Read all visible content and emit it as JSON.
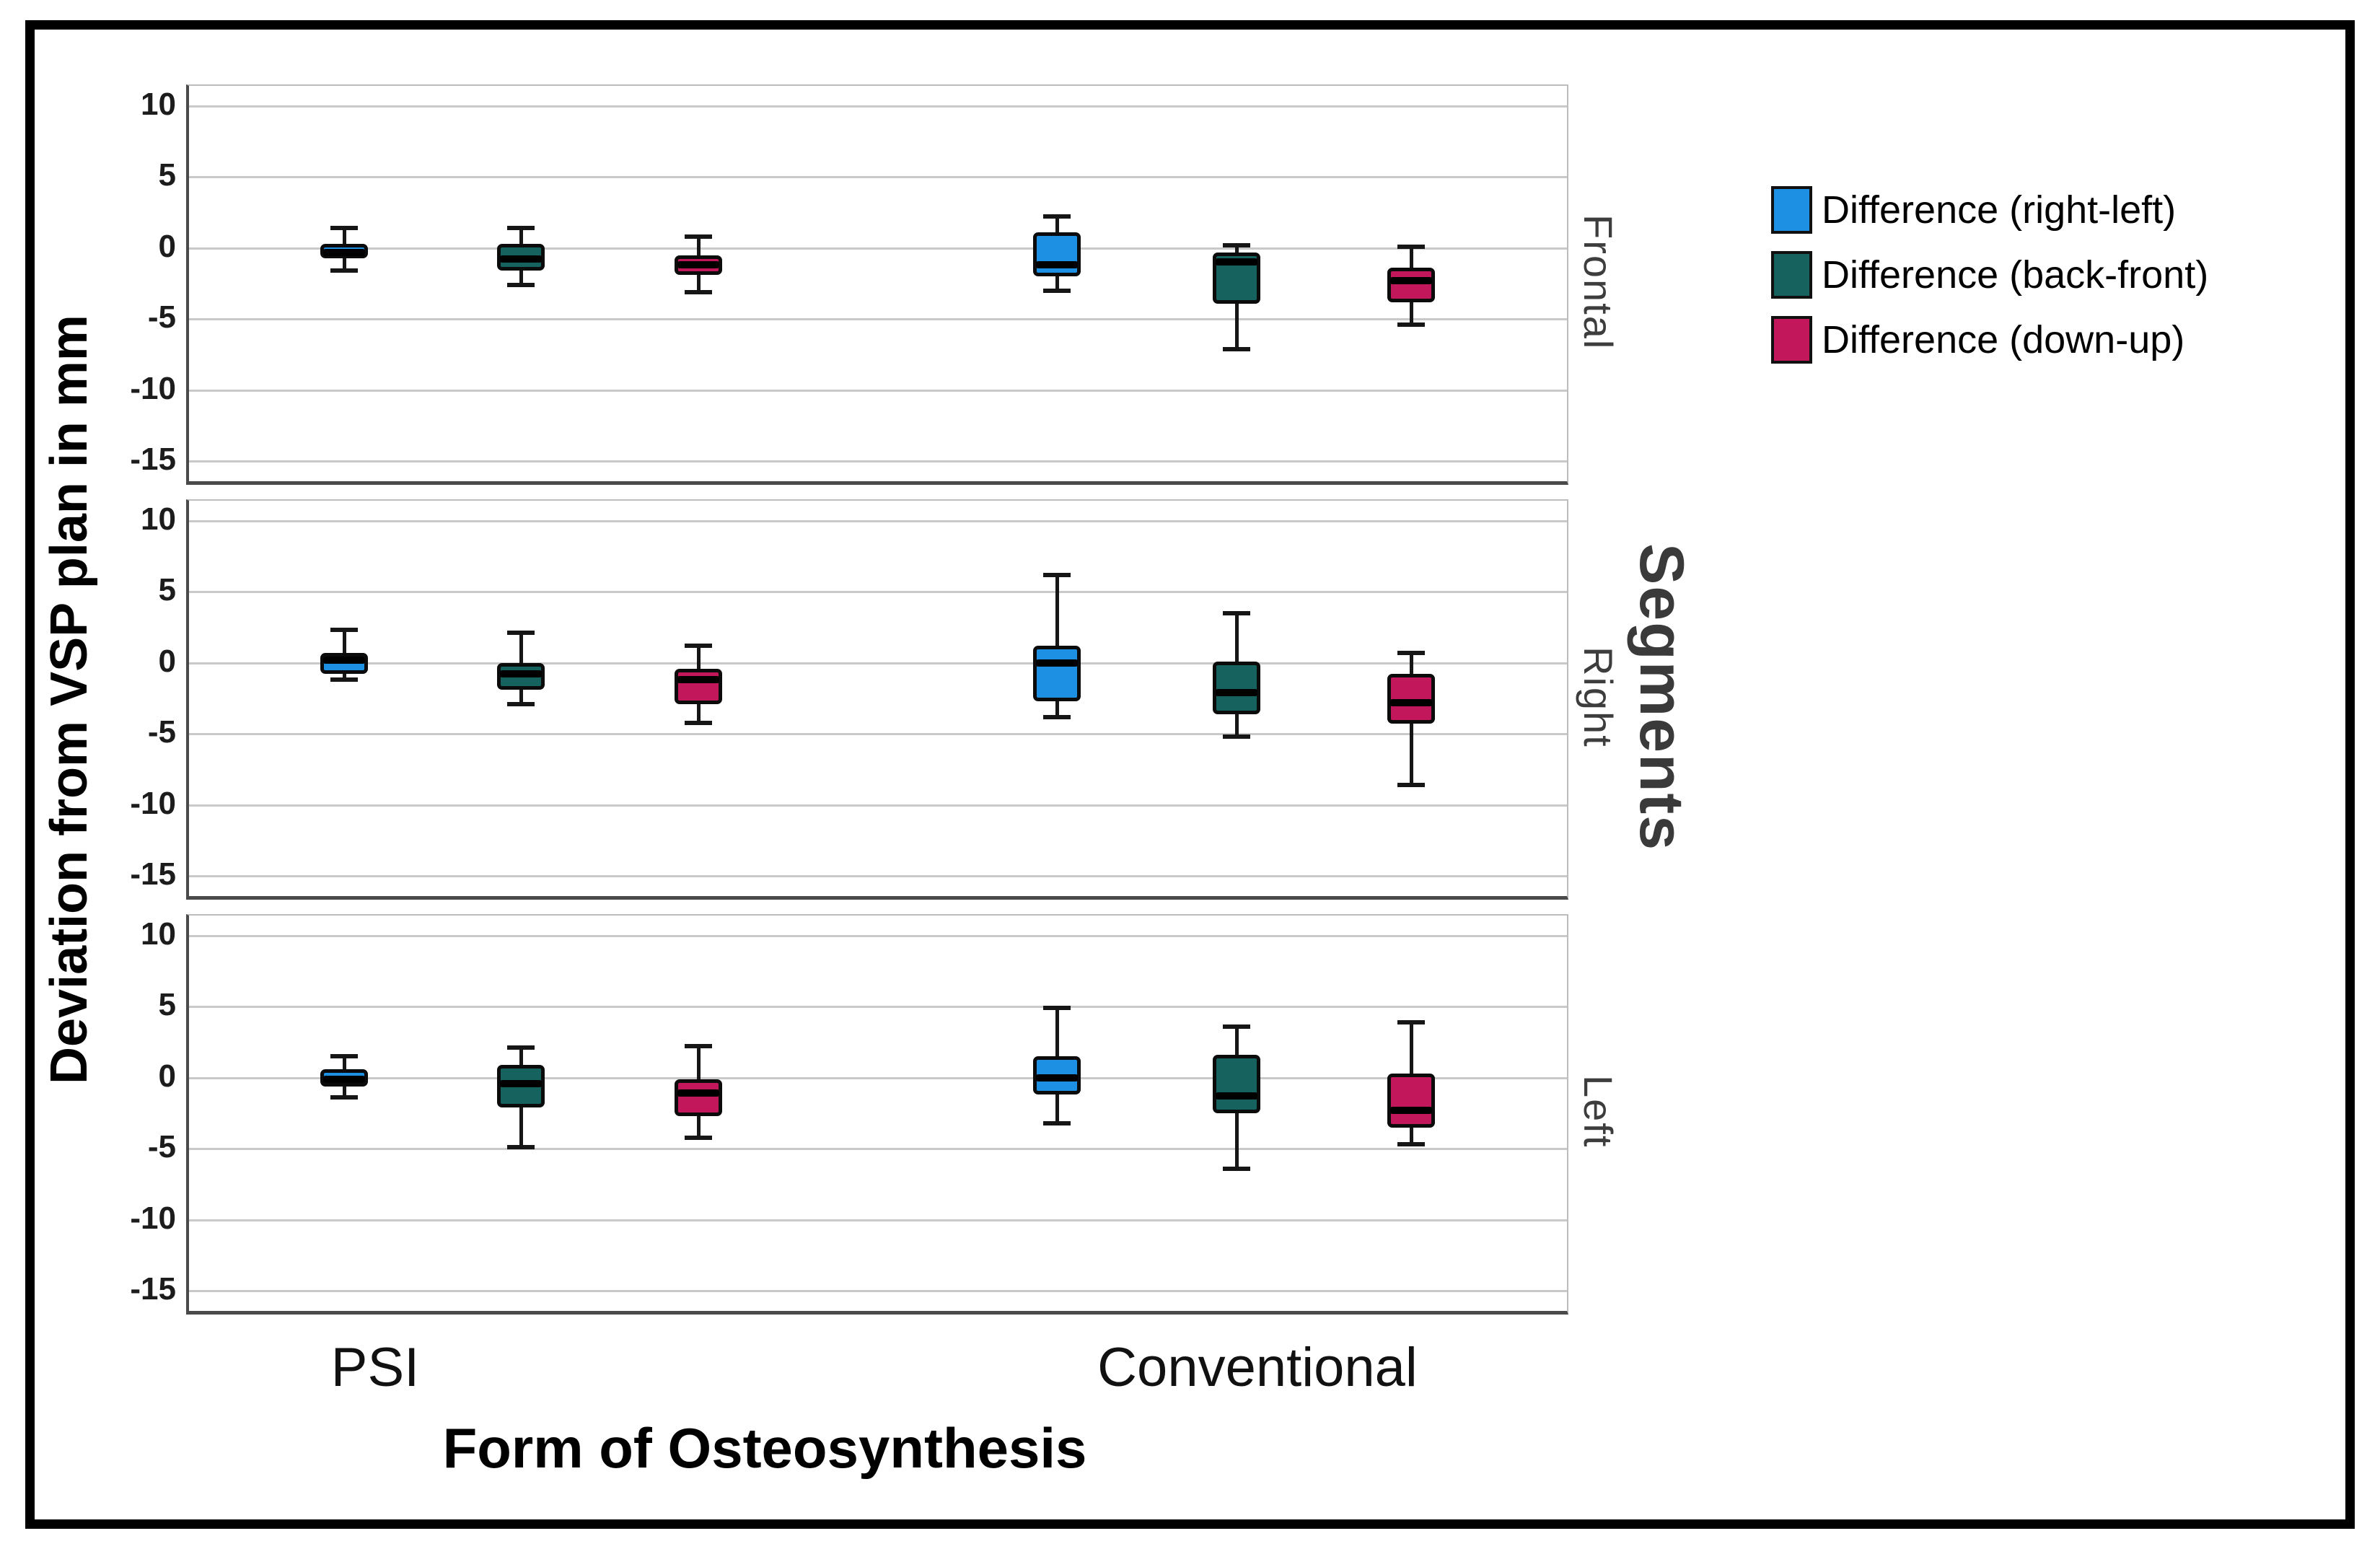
{
  "chart_data": {
    "type": "boxplot",
    "title": "",
    "ylabel": "Deviation from VSP plan in mm",
    "xlabel": "Form of Osteosynthesis",
    "panel_axis_title": "Segments",
    "categories": [
      "PSI",
      "Conventional"
    ],
    "yticks": [
      10,
      5,
      0,
      -5,
      -10,
      -15
    ],
    "ylim": [
      11.4,
      -16.4
    ],
    "grid": true,
    "legend_position": "top-right",
    "series": [
      {
        "name": "Difference (right-left)",
        "color": "#1D90E4"
      },
      {
        "name": "Difference (back-front)",
        "color": "#15625F"
      },
      {
        "name": "Difference (down-up)",
        "color": "#C2185B"
      }
    ],
    "panels": [
      {
        "label": "Frontal",
        "boxes": [
          {
            "category": "PSI",
            "series": "Difference (right-left)",
            "whisker_low": -1.6,
            "q1": -0.7,
            "median": -0.3,
            "q3": 0.3,
            "whisker_high": 1.4
          },
          {
            "category": "PSI",
            "series": "Difference (back-front)",
            "whisker_low": -2.6,
            "q1": -1.6,
            "median": -0.8,
            "q3": 0.3,
            "whisker_high": 1.4
          },
          {
            "category": "PSI",
            "series": "Difference (down-up)",
            "whisker_low": -3.1,
            "q1": -1.9,
            "median": -1.2,
            "q3": -0.5,
            "whisker_high": 0.8
          },
          {
            "category": "Conventional",
            "series": "Difference (right-left)",
            "whisker_low": -3.0,
            "q1": -2.0,
            "median": -1.2,
            "q3": 1.1,
            "whisker_high": 2.2
          },
          {
            "category": "Conventional",
            "series": "Difference (back-front)",
            "whisker_low": -7.1,
            "q1": -3.9,
            "median": -1.0,
            "q3": -0.3,
            "whisker_high": 0.2
          },
          {
            "category": "Conventional",
            "series": "Difference (down-up)",
            "whisker_low": -5.4,
            "q1": -3.8,
            "median": -2.3,
            "q3": -1.4,
            "whisker_high": 0.1
          }
        ]
      },
      {
        "label": "Right",
        "boxes": [
          {
            "category": "PSI",
            "series": "Difference (right-left)",
            "whisker_low": -1.2,
            "q1": -0.8,
            "median": 0.2,
            "q3": 0.7,
            "whisker_high": 2.3
          },
          {
            "category": "PSI",
            "series": "Difference (back-front)",
            "whisker_low": -2.9,
            "q1": -1.9,
            "median": -0.8,
            "q3": 0.0,
            "whisker_high": 2.1
          },
          {
            "category": "PSI",
            "series": "Difference (down-up)",
            "whisker_low": -4.2,
            "q1": -2.9,
            "median": -1.2,
            "q3": -0.4,
            "whisker_high": 1.2
          },
          {
            "category": "Conventional",
            "series": "Difference (right-left)",
            "whisker_low": -3.8,
            "q1": -2.7,
            "median": 0.0,
            "q3": 1.2,
            "whisker_high": 6.2
          },
          {
            "category": "Conventional",
            "series": "Difference (back-front)",
            "whisker_low": -5.2,
            "q1": -3.6,
            "median": -2.1,
            "q3": 0.1,
            "whisker_high": 3.5
          },
          {
            "category": "Conventional",
            "series": "Difference (down-up)",
            "whisker_low": -8.6,
            "q1": -4.3,
            "median": -2.8,
            "q3": -0.8,
            "whisker_high": 0.7
          }
        ]
      },
      {
        "label": "Left",
        "boxes": [
          {
            "category": "PSI",
            "series": "Difference (right-left)",
            "whisker_low": -1.4,
            "q1": -0.6,
            "median": -0.1,
            "q3": 0.6,
            "whisker_high": 1.5
          },
          {
            "category": "PSI",
            "series": "Difference (back-front)",
            "whisker_low": -4.9,
            "q1": -2.1,
            "median": -0.4,
            "q3": 0.9,
            "whisker_high": 2.1
          },
          {
            "category": "PSI",
            "series": "Difference (down-up)",
            "whisker_low": -4.2,
            "q1": -2.7,
            "median": -1.1,
            "q3": -0.1,
            "whisker_high": 2.2
          },
          {
            "category": "Conventional",
            "series": "Difference (right-left)",
            "whisker_low": -3.2,
            "q1": -1.2,
            "median": 0.0,
            "q3": 1.5,
            "whisker_high": 4.9
          },
          {
            "category": "Conventional",
            "series": "Difference (back-front)",
            "whisker_low": -6.4,
            "q1": -2.5,
            "median": -1.3,
            "q3": 1.6,
            "whisker_high": 3.6
          },
          {
            "category": "Conventional",
            "series": "Difference (down-up)",
            "whisker_low": -4.7,
            "q1": -3.5,
            "median": -2.3,
            "q3": 0.3,
            "whisker_high": 3.9
          }
        ]
      }
    ]
  }
}
